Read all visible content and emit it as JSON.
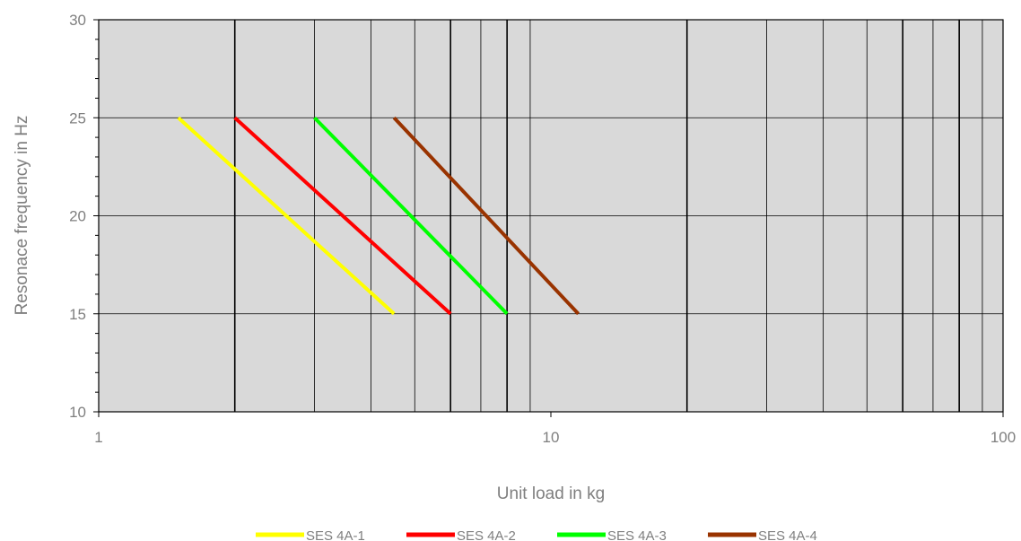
{
  "chart_data": {
    "type": "line",
    "xlabel": "Unit load in kg",
    "ylabel": "Resonace frequency in Hz",
    "x_scale": "log",
    "xlim": [
      1,
      100
    ],
    "ylim": [
      10,
      30
    ],
    "x_ticks": [
      1,
      10,
      100
    ],
    "x_tick_labels": [
      "1",
      "10",
      "100"
    ],
    "y_ticks": [
      10,
      15,
      20,
      25,
      30
    ],
    "y_tick_labels": [
      "10",
      "15",
      "20",
      "25",
      "30"
    ],
    "grid": true,
    "background": "#d9d9d9",
    "legend_position": "bottom",
    "series": [
      {
        "name": "SES 4A-1",
        "color": "#ffff00",
        "x": [
          1.5,
          4.5
        ],
        "y": [
          25,
          15
        ]
      },
      {
        "name": "SES 4A-2",
        "color": "#ff0000",
        "x": [
          2,
          6
        ],
        "y": [
          25,
          15
        ]
      },
      {
        "name": "SES 4A-3",
        "color": "#00ff00",
        "x": [
          3,
          8
        ],
        "y": [
          25,
          15
        ]
      },
      {
        "name": "SES 4A-4",
        "color": "#993300",
        "x": [
          4.5,
          11.5
        ],
        "y": [
          25,
          15
        ]
      }
    ]
  }
}
